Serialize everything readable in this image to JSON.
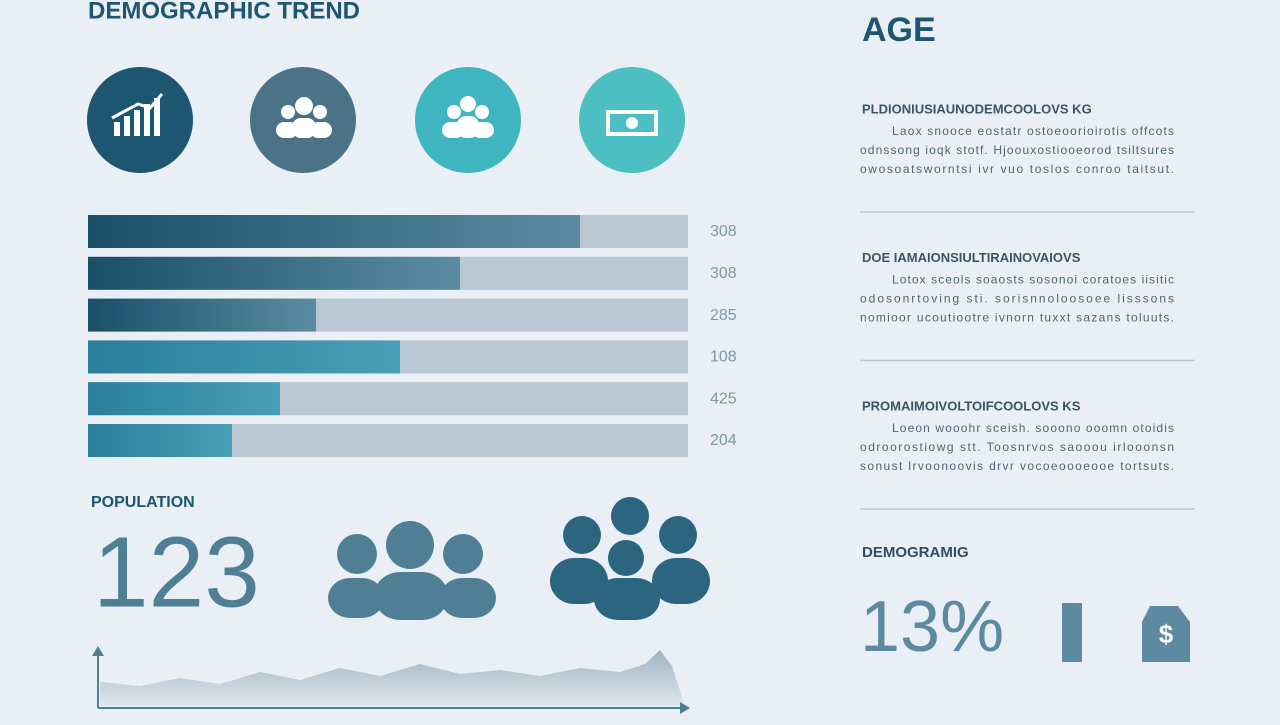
{
  "header": {
    "title": "DEMOGRAPHIC TREND"
  },
  "bars": [
    {
      "label": "308",
      "fill": 82
    },
    {
      "label": "308",
      "fill": 62
    },
    {
      "label": "285",
      "fill": 38
    },
    {
      "label": "108",
      "fill": 52
    },
    {
      "label": "425",
      "fill": 32
    },
    {
      "label": "204",
      "fill": 24
    }
  ],
  "population": {
    "label": "POPULATION",
    "value": "123"
  },
  "sidebar": {
    "title": "AGE",
    "sections": [
      {
        "heading": "PLDIONIUSIAUNODEMCOOLOVS KG",
        "lines": [
          "Laox snooce eostatr ostoeoorioirotis offcots",
          "odnssong ioqk stotf. Hjoouxostiooeorod tsiltsures",
          "owosoatsworntsi ivr vuo toslos conroo taitsut."
        ]
      },
      {
        "heading": "DOE IAMAIONSIULTIRAINOVAIOVS",
        "lines": [
          "Lotox sceols soaosts sosonoi coratoes iisitic",
          "odosonrtoving sti. sorisnnoloosoee lisssons",
          "nomioor ucoutiootre ivnorn tuxxt sazans toluuts."
        ]
      },
      {
        "heading": "PROMAIMOIVOLTOIFCOOLOVS KS",
        "lines": [
          "Loeon wooohr sceish. sooono ooomn otoidis",
          "odroorostiowg stt. Toosnrvos saooou irlooonsn",
          "sonust lrvoonoovis drvr vocoeoooeooe tortsuts."
        ]
      }
    ],
    "stat_label": "DEMOGRAMIG",
    "stat_value": "13%"
  }
}
